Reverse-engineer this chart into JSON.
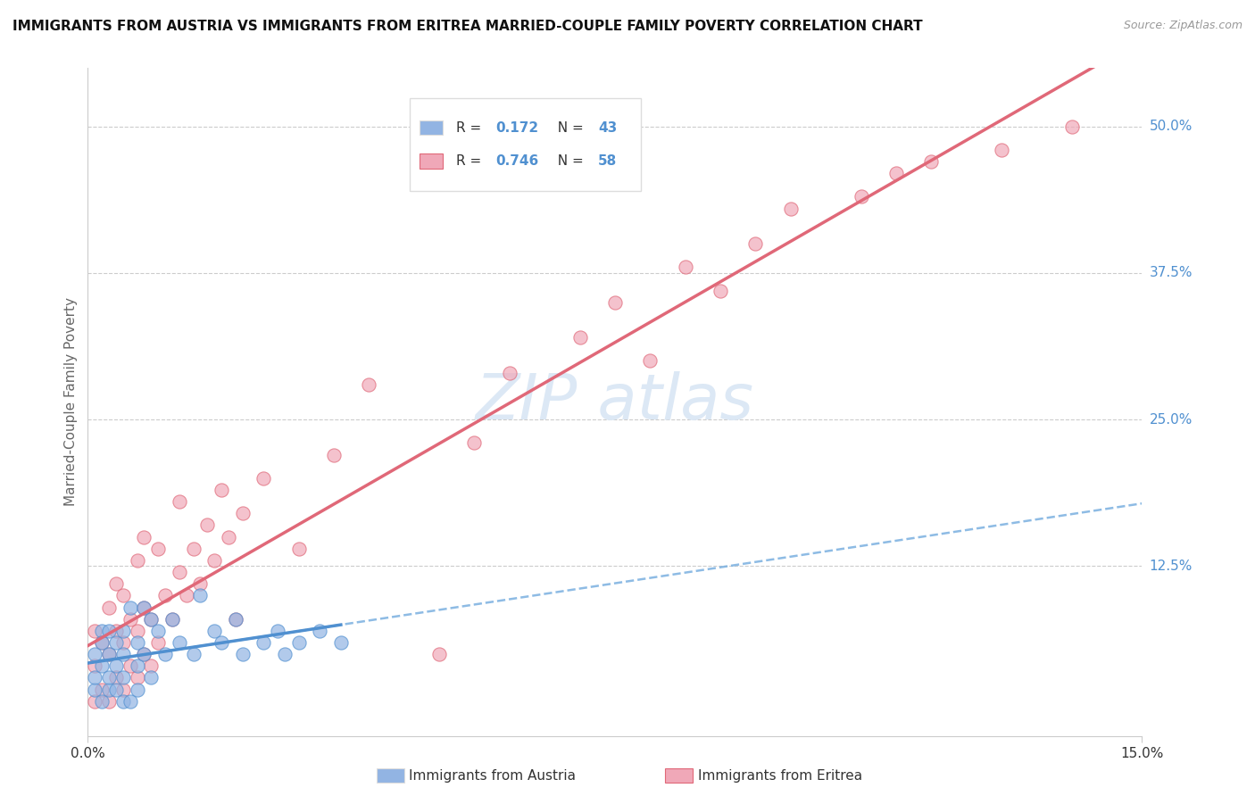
{
  "title": "IMMIGRANTS FROM AUSTRIA VS IMMIGRANTS FROM ERITREA MARRIED-COUPLE FAMILY POVERTY CORRELATION CHART",
  "source_text": "Source: ZipAtlas.com",
  "ylabel": "Married-Couple Family Poverty",
  "xlim": [
    0.0,
    0.15
  ],
  "ylim": [
    -0.02,
    0.55
  ],
  "ytick_values": [
    0.0,
    0.125,
    0.25,
    0.375,
    0.5
  ],
  "ytick_labels": [
    "0.0%",
    "12.5%",
    "25.0%",
    "37.5%",
    "50.0%"
  ],
  "xtick_values": [
    0.0,
    0.15
  ],
  "xtick_labels": [
    "0.0%",
    "15.0%"
  ],
  "austria_scatter_color": "#92b4e3",
  "eritrea_scatter_color": "#f0a8b8",
  "austria_line_color": "#5090d0",
  "eritrea_line_color": "#e06878",
  "dashed_line_color": "#7ab0e0",
  "R_austria": 0.172,
  "N_austria": 43,
  "R_eritrea": 0.746,
  "N_eritrea": 58,
  "legend_label_austria": "Immigrants from Austria",
  "legend_label_eritrea": "Immigrants from Eritrea",
  "watermark_text": "ZIPatlas",
  "background_color": "#ffffff",
  "grid_color": "#cccccc",
  "label_color": "#5090d0",
  "text_color": "#333333",
  "axis_label_color": "#666666",
  "legend_box_color": "#dddddd",
  "austria_x": [
    0.001,
    0.001,
    0.001,
    0.002,
    0.002,
    0.002,
    0.002,
    0.003,
    0.003,
    0.003,
    0.003,
    0.004,
    0.004,
    0.004,
    0.005,
    0.005,
    0.005,
    0.005,
    0.006,
    0.006,
    0.007,
    0.007,
    0.007,
    0.008,
    0.008,
    0.009,
    0.009,
    0.01,
    0.011,
    0.012,
    0.013,
    0.015,
    0.016,
    0.018,
    0.019,
    0.021,
    0.022,
    0.025,
    0.027,
    0.028,
    0.03,
    0.033,
    0.036
  ],
  "austria_y": [
    0.02,
    0.05,
    0.03,
    0.01,
    0.04,
    0.07,
    0.06,
    0.02,
    0.05,
    0.03,
    0.07,
    0.02,
    0.06,
    0.04,
    0.01,
    0.05,
    0.03,
    0.07,
    0.01,
    0.09,
    0.04,
    0.02,
    0.06,
    0.09,
    0.05,
    0.03,
    0.08,
    0.07,
    0.05,
    0.08,
    0.06,
    0.05,
    0.1,
    0.07,
    0.06,
    0.08,
    0.05,
    0.06,
    0.07,
    0.05,
    0.06,
    0.07,
    0.06
  ],
  "eritrea_x": [
    0.001,
    0.001,
    0.001,
    0.002,
    0.002,
    0.003,
    0.003,
    0.003,
    0.004,
    0.004,
    0.004,
    0.005,
    0.005,
    0.005,
    0.006,
    0.006,
    0.007,
    0.007,
    0.007,
    0.008,
    0.008,
    0.008,
    0.009,
    0.009,
    0.01,
    0.01,
    0.011,
    0.012,
    0.013,
    0.013,
    0.014,
    0.015,
    0.016,
    0.017,
    0.018,
    0.019,
    0.02,
    0.021,
    0.022,
    0.025,
    0.03,
    0.035,
    0.04,
    0.05,
    0.055,
    0.06,
    0.07,
    0.075,
    0.08,
    0.085,
    0.09,
    0.095,
    0.1,
    0.11,
    0.115,
    0.12,
    0.13,
    0.14
  ],
  "eritrea_y": [
    0.01,
    0.04,
    0.07,
    0.02,
    0.06,
    0.01,
    0.05,
    0.09,
    0.03,
    0.07,
    0.11,
    0.02,
    0.06,
    0.1,
    0.04,
    0.08,
    0.03,
    0.07,
    0.13,
    0.05,
    0.09,
    0.15,
    0.04,
    0.08,
    0.06,
    0.14,
    0.1,
    0.08,
    0.12,
    0.18,
    0.1,
    0.14,
    0.11,
    0.16,
    0.13,
    0.19,
    0.15,
    0.08,
    0.17,
    0.2,
    0.14,
    0.22,
    0.28,
    0.05,
    0.23,
    0.29,
    0.32,
    0.35,
    0.3,
    0.38,
    0.36,
    0.4,
    0.43,
    0.44,
    0.46,
    0.47,
    0.48,
    0.5
  ]
}
